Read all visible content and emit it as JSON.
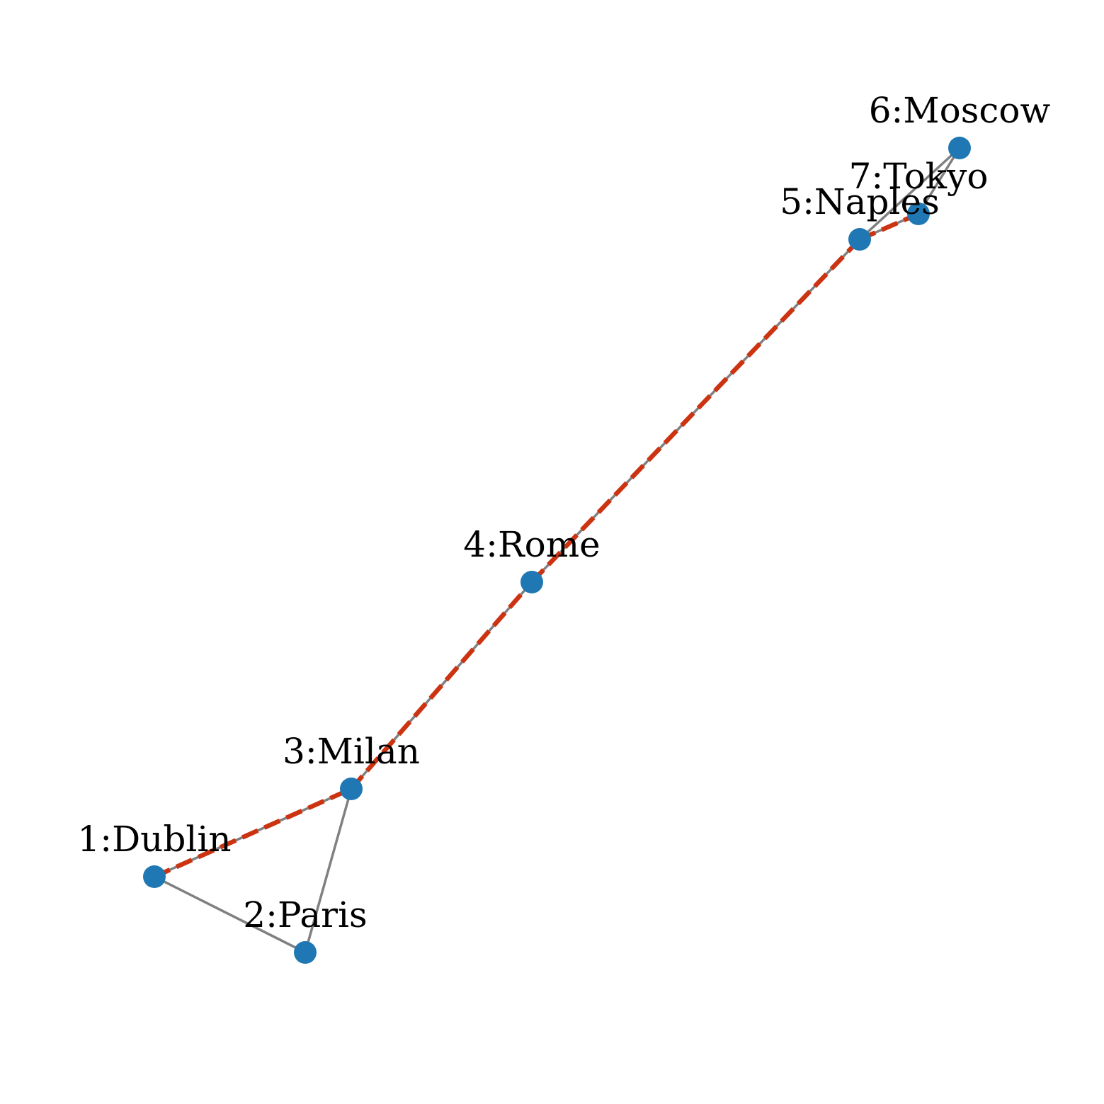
{
  "graph": {
    "nodes": [
      {
        "id": 1,
        "label": "1:Dublin"
      },
      {
        "id": 2,
        "label": "2:Paris"
      },
      {
        "id": 3,
        "label": "3:Milan"
      },
      {
        "id": 4,
        "label": "4:Rome"
      },
      {
        "id": 5,
        "label": "5:Naples"
      },
      {
        "id": 6,
        "label": "6:Moscow"
      },
      {
        "id": 7,
        "label": "7:Tokyo"
      }
    ],
    "edges": [
      {
        "source": 1,
        "target": 2
      },
      {
        "source": 1,
        "target": 3
      },
      {
        "source": 2,
        "target": 3
      },
      {
        "source": 3,
        "target": 4
      },
      {
        "source": 4,
        "target": 5
      },
      {
        "source": 5,
        "target": 6
      },
      {
        "source": 5,
        "target": 7
      },
      {
        "source": 6,
        "target": 7
      }
    ],
    "highlighted_path": [
      1,
      3,
      4,
      5,
      7
    ]
  },
  "colors": {
    "node": "#1f77b4",
    "edge": "#808080",
    "path": "#cc3311",
    "label": "#000000",
    "background": "#ffffff"
  }
}
